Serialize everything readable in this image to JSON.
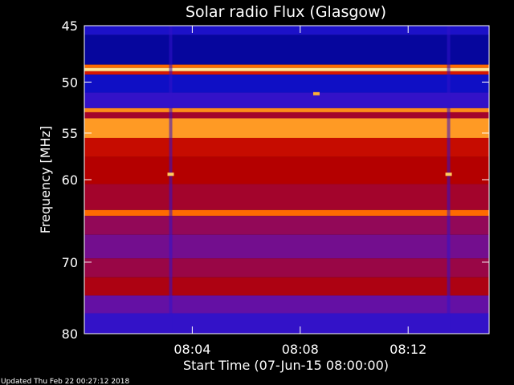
{
  "chart_data": {
    "type": "heatmap",
    "title": "Solar radio Flux (Glasgow)",
    "xlabel": "Start Time (07-Jun-15 08:00:00)",
    "ylabel": "Frequency [MHz]",
    "x_unit": "minutes after 08:00",
    "xlim": [
      0,
      15
    ],
    "ylim": [
      45,
      80
    ],
    "y_scale": "log",
    "x_ticks": [
      {
        "value": 4,
        "label": "08:04"
      },
      {
        "value": 8,
        "label": "08:08"
      },
      {
        "value": 12,
        "label": "08:12"
      }
    ],
    "y_ticks": [
      {
        "value": 45,
        "label": "45"
      },
      {
        "value": 50,
        "label": "50"
      },
      {
        "value": 55,
        "label": "55"
      },
      {
        "value": 60,
        "label": "60"
      },
      {
        "value": 70,
        "label": "70"
      },
      {
        "value": 80,
        "label": "80"
      }
    ],
    "colormap": [
      "#000080",
      "#1010c8",
      "#4a14c8",
      "#8a0a6e",
      "#b40000",
      "#e11e00",
      "#ff6a00",
      "#ffc040",
      "#ffffd0"
    ],
    "bands": [
      {
        "from": 45.0,
        "to": 45.8,
        "intensity": 0.15
      },
      {
        "from": 45.8,
        "to": 48.4,
        "intensity": 0.05
      },
      {
        "from": 48.4,
        "to": 48.7,
        "intensity": 0.75
      },
      {
        "from": 48.7,
        "to": 49.0,
        "intensity": 0.95
      },
      {
        "from": 49.0,
        "to": 49.3,
        "intensity": 0.6
      },
      {
        "from": 49.3,
        "to": 51.0,
        "intensity": 0.12
      },
      {
        "from": 51.0,
        "to": 52.5,
        "intensity": 0.2
      },
      {
        "from": 52.5,
        "to": 52.9,
        "intensity": 0.8
      },
      {
        "from": 52.9,
        "to": 53.5,
        "intensity": 0.45
      },
      {
        "from": 53.5,
        "to": 55.5,
        "intensity": 0.82
      },
      {
        "from": 55.5,
        "to": 57.5,
        "intensity": 0.55
      },
      {
        "from": 57.5,
        "to": 60.5,
        "intensity": 0.5
      },
      {
        "from": 60.5,
        "to": 63.5,
        "intensity": 0.45
      },
      {
        "from": 63.5,
        "to": 64.2,
        "intensity": 0.75
      },
      {
        "from": 64.2,
        "to": 66.5,
        "intensity": 0.4
      },
      {
        "from": 66.5,
        "to": 69.5,
        "intensity": 0.33
      },
      {
        "from": 69.5,
        "to": 72.0,
        "intensity": 0.42
      },
      {
        "from": 72.0,
        "to": 74.5,
        "intensity": 0.48
      },
      {
        "from": 74.5,
        "to": 77.0,
        "intensity": 0.3
      },
      {
        "from": 77.0,
        "to": 80.0,
        "intensity": 0.2
      }
    ],
    "hot_spots": [
      {
        "x": 3.2,
        "y": 59.4,
        "intensity": 0.9
      },
      {
        "x": 13.5,
        "y": 59.4,
        "intensity": 0.9
      },
      {
        "x": 8.6,
        "y": 51.1,
        "intensity": 0.85
      }
    ],
    "bright_spikes": [
      {
        "x": 3.2,
        "from": 45.0,
        "to": 80.0,
        "intensity": 0.2
      },
      {
        "x": 13.5,
        "from": 45.0,
        "to": 80.0,
        "intensity": 0.2
      }
    ],
    "grid": false,
    "legend": "none"
  },
  "footer": {
    "updated": "Updated Thu Feb 22 00:27:12 2018"
  }
}
